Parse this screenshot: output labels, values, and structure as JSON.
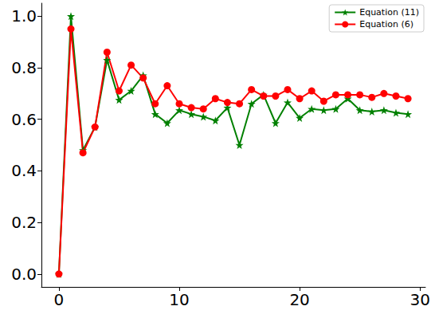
{
  "chart_data": {
    "type": "line",
    "x": [
      0,
      1,
      2,
      3,
      4,
      5,
      6,
      7,
      8,
      9,
      10,
      11,
      12,
      13,
      14,
      15,
      16,
      17,
      18,
      19,
      20,
      21,
      22,
      23,
      24,
      25,
      26,
      27,
      28,
      29
    ],
    "series": [
      {
        "name": "Equation (11)",
        "color": "#008000",
        "marker": "star",
        "line_style": "solid",
        "values": [
          0.0,
          1.0,
          0.48,
          0.57,
          0.83,
          0.675,
          0.71,
          0.77,
          0.62,
          0.585,
          0.635,
          0.62,
          0.61,
          0.595,
          0.645,
          0.5,
          0.66,
          0.695,
          0.585,
          0.665,
          0.605,
          0.64,
          0.635,
          0.64,
          0.68,
          0.635,
          0.63,
          0.635,
          0.625,
          0.62
        ]
      },
      {
        "name": "Equation (6)",
        "color": "#ff0000",
        "marker": "circle",
        "line_style": "solid",
        "values": [
          0.0,
          0.95,
          0.47,
          0.57,
          0.86,
          0.71,
          0.81,
          0.76,
          0.66,
          0.73,
          0.66,
          0.645,
          0.64,
          0.68,
          0.665,
          0.66,
          0.715,
          0.69,
          0.69,
          0.715,
          0.68,
          0.71,
          0.67,
          0.695,
          0.695,
          0.695,
          0.685,
          0.7,
          0.69,
          0.68
        ]
      }
    ],
    "xlim": [
      -1.45,
      30.45
    ],
    "xticks": [
      0,
      10,
      20,
      30
    ],
    "ylim": [
      -0.05,
      1.05
    ],
    "yticks": [
      {
        "value": 0,
        "label": "0.0"
      },
      {
        "value": 0.2,
        "label": "0.2"
      },
      {
        "value": 0.4,
        "label": "0.4"
      },
      {
        "value": 0.6,
        "label": "0.6"
      },
      {
        "value": 0.8,
        "label": "0.8"
      },
      {
        "value": 1,
        "label": "1.0"
      }
    ],
    "grid": false,
    "legend": "upper right"
  }
}
